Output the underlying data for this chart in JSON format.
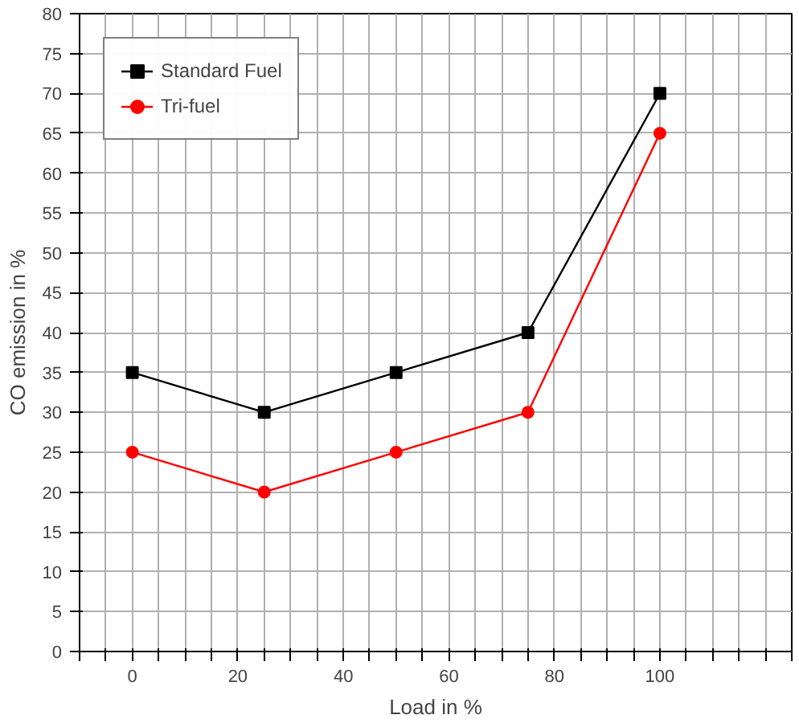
{
  "chart_data": {
    "type": "line",
    "xlabel": "Load in %",
    "ylabel": "CO emission in %",
    "x": [
      0,
      25,
      50,
      75,
      100
    ],
    "series": [
      {
        "name": "Standard Fuel",
        "color": "#000000",
        "marker": "square",
        "values": [
          35,
          30,
          35,
          40,
          70
        ]
      },
      {
        "name": "Tri-fuel",
        "color": "#ff0000",
        "marker": "circle",
        "values": [
          25,
          20,
          25,
          30,
          65
        ]
      }
    ],
    "xlim": [
      -10,
      125
    ],
    "xticks": [
      {
        "value": -10,
        "label": null
      },
      {
        "value": -5,
        "label": null
      },
      0,
      {
        "value": 5,
        "label": null
      },
      {
        "value": 10,
        "label": null
      },
      {
        "value": 15,
        "label": null
      },
      20,
      {
        "value": 25,
        "label": null
      },
      {
        "value": 30,
        "label": null
      },
      {
        "value": 35,
        "label": null
      },
      40,
      {
        "value": 45,
        "label": null
      },
      {
        "value": 50,
        "label": null
      },
      {
        "value": 55,
        "label": null
      },
      60,
      {
        "value": 65,
        "label": null
      },
      {
        "value": 70,
        "label": null
      },
      {
        "value": 75,
        "label": null
      },
      80,
      {
        "value": 85,
        "label": null
      },
      {
        "value": 90,
        "label": null
      },
      {
        "value": 95,
        "label": null
      },
      100,
      {
        "value": 105,
        "label": null
      },
      {
        "value": 110,
        "label": null
      },
      {
        "value": 115,
        "label": null
      },
      {
        "value": 120,
        "label": null
      },
      {
        "value": 125,
        "label": null
      }
    ],
    "ylim": [
      0,
      80
    ],
    "yticks": [
      0,
      5,
      10,
      15,
      20,
      25,
      30,
      35,
      40,
      45,
      50,
      55,
      60,
      65,
      70,
      75,
      80
    ],
    "grid": true,
    "legend": "top left",
    "line_style": "solid"
  }
}
